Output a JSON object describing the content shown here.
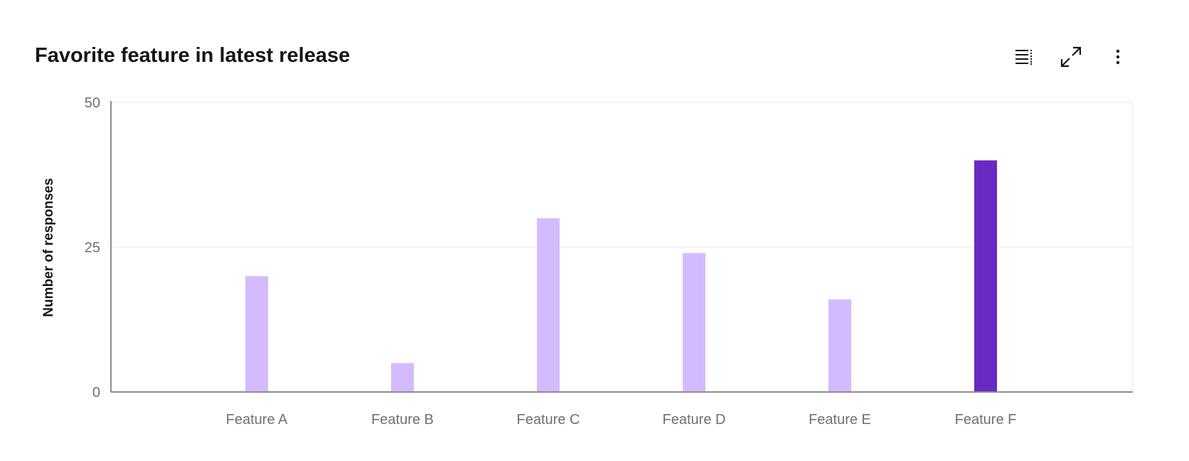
{
  "header": {
    "title": "Favorite feature in latest release",
    "toolbar": [
      {
        "icon": "table-view-icon",
        "label": "Show as table"
      },
      {
        "icon": "maximize-icon",
        "label": "Make fullscreen"
      },
      {
        "icon": "overflow-menu-vertical-icon",
        "label": "More options"
      }
    ]
  },
  "chart_data": {
    "type": "bar",
    "title": "Favorite feature in latest release",
    "xlabel": "",
    "ylabel": "Number of responses",
    "categories": [
      "Feature A",
      "Feature B",
      "Feature C",
      "Feature D",
      "Feature E",
      "Feature F"
    ],
    "values": [
      20,
      5,
      30,
      24,
      16,
      40
    ],
    "ylim": [
      0,
      50
    ],
    "yticks": [
      0,
      25,
      50
    ],
    "grid": true,
    "highlighted": "Feature F",
    "colors": {
      "bar": "#d4bbff",
      "highlight": "#6929c4",
      "axis": "#8d8d8d",
      "grid": "#f0f0f0",
      "tick_text": "#6f6f6f"
    }
  }
}
